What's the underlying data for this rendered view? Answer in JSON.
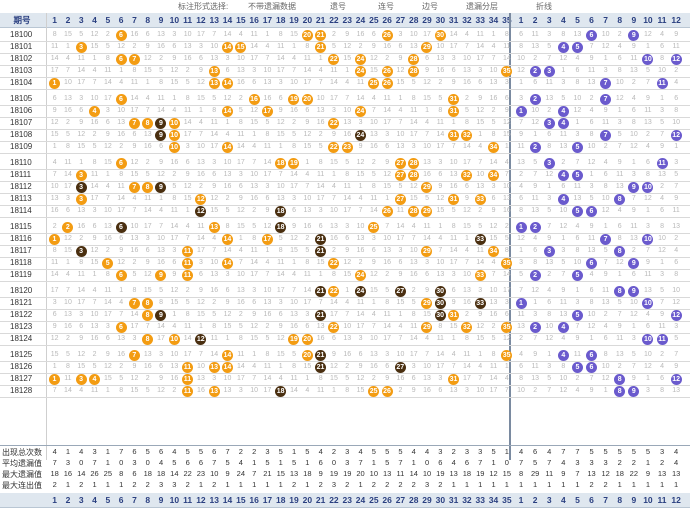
{
  "legend": {
    "items": [
      "标注形式选择:",
      "不带遗漏数据",
      "遗号",
      "连号",
      "边号",
      "遗漏分层",
      "折线"
    ]
  },
  "header": {
    "label": "期号",
    "front_numbers": [
      "1",
      "2",
      "3",
      "4",
      "5",
      "6",
      "7",
      "8",
      "9",
      "10",
      "11",
      "12",
      "13",
      "14",
      "15",
      "16",
      "17",
      "18",
      "19",
      "20",
      "21",
      "22",
      "23",
      "24",
      "25",
      "26",
      "27",
      "28",
      "29",
      "30",
      "31",
      "32",
      "33",
      "34",
      "35"
    ],
    "back_numbers": [
      "1",
      "2",
      "3",
      "4",
      "5",
      "6",
      "7",
      "8",
      "9",
      "10",
      "11",
      "12"
    ]
  },
  "issues": [
    "18100",
    "18101",
    "18102",
    "18103",
    "18104",
    "18105",
    "18106",
    "18107",
    "18108",
    "18109",
    "18110",
    "18111",
    "18112",
    "18113",
    "18114",
    "18115",
    "18116",
    "18117",
    "18118",
    "18119",
    "18120",
    "18121",
    "18122",
    "18123",
    "18124",
    "18125",
    "18126",
    "18127",
    "18128"
  ],
  "draws": [
    {
      "front": [
        "06",
        "20",
        "21",
        "26",
        "30"
      ],
      "back": [
        "06",
        "09"
      ]
    },
    {
      "front": [
        "03",
        "14",
        "15",
        "21",
        "29"
      ],
      "back": [
        "04",
        "05"
      ]
    },
    {
      "front": [
        "06",
        "07",
        "22",
        "24",
        "28"
      ],
      "back": [
        "10",
        "12"
      ]
    },
    {
      "front": [
        "13",
        "24",
        "26",
        "28",
        "35"
      ],
      "back": [
        "02",
        "03"
      ]
    },
    {
      "front": [
        "01",
        "13",
        "14",
        "25",
        "26"
      ],
      "back": [
        "07",
        "11"
      ]
    },
    {
      "front": [
        "06",
        "16",
        "19",
        "20",
        "31"
      ],
      "back": [
        "02",
        "07"
      ]
    },
    {
      "front": [
        "04",
        "14",
        "17",
        "24",
        "31"
      ],
      "back": [
        "01",
        "04"
      ]
    },
    {
      "front": [
        "07",
        "08",
        "09",
        "10",
        "22"
      ],
      "back": [
        "03",
        "04"
      ]
    },
    {
      "front": [
        "09",
        "10",
        "24",
        "31",
        "32"
      ],
      "back": [
        "07",
        "12"
      ]
    },
    {
      "front": [
        "10",
        "14",
        "22",
        "23",
        "34"
      ],
      "back": [
        "02",
        "05"
      ]
    },
    {
      "front": [
        "06",
        "18",
        "19",
        "27",
        "28"
      ],
      "back": [
        "03",
        "11"
      ]
    },
    {
      "front": [
        "03",
        "27",
        "28",
        "32",
        "34"
      ],
      "back": [
        "04",
        "05"
      ]
    },
    {
      "front": [
        "03",
        "07",
        "08",
        "09",
        "29"
      ],
      "back": [
        "09",
        "10"
      ]
    },
    {
      "front": [
        "03",
        "12",
        "27",
        "31",
        "33"
      ],
      "back": [
        "04",
        "08"
      ]
    },
    {
      "front": [
        "12",
        "18",
        "26",
        "28",
        "29"
      ],
      "back": [
        "05",
        "06"
      ]
    },
    {
      "front": [
        "02",
        "06",
        "13",
        "18",
        "25"
      ],
      "back": [
        "01",
        "02"
      ]
    },
    {
      "front": [
        "01",
        "14",
        "17",
        "21",
        "33"
      ],
      "back": [
        "07",
        "10"
      ]
    },
    {
      "front": [
        "03",
        "11",
        "21",
        "29",
        "34"
      ],
      "back": [
        "03",
        "08"
      ]
    },
    {
      "front": [
        "05",
        "11",
        "14",
        "22",
        "35"
      ],
      "back": [
        "06",
        "09"
      ]
    },
    {
      "front": [
        "06",
        "09",
        "11",
        "24",
        "33"
      ],
      "back": [
        "02",
        "05"
      ]
    },
    {
      "front": [
        "21",
        "22",
        "24",
        "27",
        "30"
      ],
      "back": [
        "08",
        "09"
      ]
    },
    {
      "front": [
        "07",
        "08",
        "29",
        "30",
        "33"
      ],
      "back": [
        "01",
        "10"
      ]
    },
    {
      "front": [
        "08",
        "09",
        "21",
        "30",
        "31"
      ],
      "back": [
        "05",
        "12"
      ]
    },
    {
      "front": [
        "06",
        "22",
        "29",
        "32",
        "35"
      ],
      "back": [
        "02",
        "04"
      ]
    },
    {
      "front": [
        "08",
        "10",
        "12",
        "19",
        "20"
      ],
      "back": [
        "10",
        "11"
      ]
    },
    {
      "front": [
        "07",
        "14",
        "20",
        "21",
        "35"
      ],
      "back": [
        "04",
        "06"
      ]
    },
    {
      "front": [
        "11",
        "13",
        "14",
        "21",
        "27"
      ],
      "back": [
        "05",
        "06"
      ]
    },
    {
      "front": [
        "01",
        "03",
        "04",
        "11",
        "31"
      ],
      "back": [
        "08",
        "12"
      ]
    },
    {
      "front": [
        "11",
        "13",
        "18",
        "25",
        "26"
      ],
      "back": [
        "08",
        "09"
      ]
    }
  ],
  "stats": [
    {
      "label": "出现总次数",
      "front": [
        "4",
        "1",
        "4",
        "3",
        "1",
        "7",
        "6",
        "5",
        "6",
        "4",
        "5",
        "5",
        "6",
        "7",
        "2",
        "2",
        "3",
        "5",
        "1",
        "5",
        "4",
        "2",
        "3",
        "4",
        "5",
        "5",
        "5",
        "4",
        "4",
        "3",
        "2",
        "3",
        "3",
        "5",
        "1"
      ],
      "back": [
        "4",
        "6",
        "4",
        "7",
        "7",
        "5",
        "5",
        "5",
        "5",
        "5",
        "3",
        "4"
      ]
    },
    {
      "label": "平均遗漏值",
      "front": [
        "7",
        "3",
        "0",
        "7",
        "1",
        "0",
        "3",
        "0",
        "4",
        "5",
        "6",
        "6",
        "7",
        "5",
        "4",
        "1",
        "5",
        "1",
        "5",
        "1",
        "6",
        "0",
        "3",
        "7",
        "1",
        "5",
        "7",
        "1",
        "0",
        "6",
        "4",
        "6",
        "7",
        "1",
        "0"
      ],
      "back": [
        "7",
        "5",
        "7",
        "4",
        "3",
        "3",
        "3",
        "2",
        "2",
        "1",
        "2",
        "4"
      ]
    },
    {
      "label": "最大遗漏值",
      "front": [
        "18",
        "16",
        "14",
        "26",
        "25",
        "8",
        "6",
        "18",
        "18",
        "14",
        "22",
        "23",
        "10",
        "9",
        "24",
        "7",
        "21",
        "15",
        "13",
        "18",
        "9",
        "19",
        "19",
        "20",
        "10",
        "13",
        "11",
        "14",
        "10",
        "19",
        "13",
        "18",
        "19",
        "12",
        "15"
      ],
      "back": [
        "8",
        "29",
        "11",
        "9",
        "7",
        "13",
        "12",
        "18",
        "22",
        "9",
        "13",
        "13"
      ]
    },
    {
      "label": "最大连出值",
      "front": [
        "2",
        "1",
        "2",
        "1",
        "1",
        "1",
        "2",
        "2",
        "3",
        "3",
        "2",
        "1",
        "2",
        "1",
        "1",
        "1",
        "1",
        "1",
        "2",
        "1",
        "2",
        "3",
        "2",
        "1",
        "2",
        "2",
        "2",
        "2",
        "3",
        "2",
        "1",
        "1",
        "1",
        "1",
        "1"
      ],
      "back": [
        "1",
        "1",
        "1",
        "1",
        "1",
        "2",
        "2",
        "1",
        "1",
        "1",
        "1",
        "1"
      ]
    }
  ],
  "colors": {
    "front_ball": "#f39c12",
    "front_ball_dark": "#4a2f10",
    "back_ball": "#6a5acd",
    "header_bg": "#dfe7ef",
    "header_text": "#2a3f80"
  }
}
